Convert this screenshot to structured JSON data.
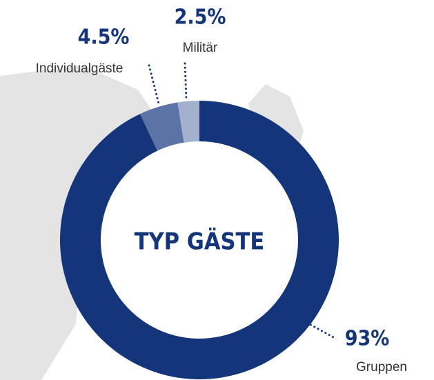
{
  "chart_data": {
    "type": "donut",
    "title": "TYP GÄSTE",
    "categories": [
      "Gruppen",
      "Individualgäste",
      "Militär"
    ],
    "values": [
      93,
      4.5,
      2.5
    ],
    "value_labels": [
      "93%",
      "4.5%",
      "2.5%"
    ],
    "colors": [
      "#14357a",
      "#5b73a6",
      "#a3b1cf"
    ]
  }
}
